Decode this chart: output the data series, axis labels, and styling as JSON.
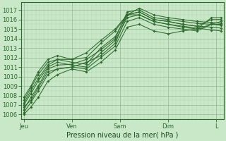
{
  "bg_color": "#c8e8c8",
  "grid_color_minor": "#b0d4b0",
  "grid_color_major": "#90b890",
  "line_color": "#2d6a2d",
  "marker_color": "#2d6a2d",
  "xlabel": "Pression niveau de la mer( hPa )",
  "xlabel_color": "#1a4a1a",
  "ylim": [
    1005.5,
    1017.8
  ],
  "yticks": [
    1006,
    1007,
    1008,
    1009,
    1010,
    1011,
    1012,
    1013,
    1014,
    1015,
    1016,
    1017
  ],
  "xtick_labels": [
    "Jeu",
    "Ven",
    "Sam",
    "Dim",
    "L"
  ],
  "xtick_positions": [
    0,
    1,
    2,
    3,
    4
  ],
  "lines": [
    {
      "x": [
        0.0,
        0.15,
        0.3,
        0.5,
        0.7,
        1.0,
        1.3,
        1.6,
        1.9,
        2.15,
        2.4,
        2.7,
        3.0,
        3.3,
        3.6,
        3.9,
        4.1
      ],
      "y": [
        1006.2,
        1007.3,
        1008.5,
        1010.2,
        1010.8,
        1011.0,
        1011.5,
        1012.2,
        1013.5,
        1016.5,
        1016.8,
        1016.0,
        1015.8,
        1015.5,
        1015.3,
        1015.2,
        1015.1
      ]
    },
    {
      "x": [
        0.0,
        0.15,
        0.3,
        0.5,
        0.7,
        1.0,
        1.3,
        1.6,
        1.9,
        2.15,
        2.4,
        2.7,
        3.0,
        3.3,
        3.6,
        3.9,
        4.1
      ],
      "y": [
        1006.5,
        1007.8,
        1009.0,
        1010.8,
        1011.2,
        1011.3,
        1011.8,
        1012.8,
        1014.0,
        1016.8,
        1017.0,
        1016.2,
        1016.0,
        1015.8,
        1015.6,
        1015.5,
        1015.4
      ]
    },
    {
      "x": [
        0.0,
        0.15,
        0.3,
        0.5,
        0.7,
        1.0,
        1.3,
        1.6,
        1.9,
        2.15,
        2.4,
        2.7,
        3.0,
        3.3,
        3.6,
        3.9,
        4.1
      ],
      "y": [
        1007.0,
        1008.2,
        1009.5,
        1011.0,
        1011.5,
        1011.2,
        1011.0,
        1012.5,
        1013.8,
        1016.2,
        1016.5,
        1015.8,
        1015.5,
        1015.3,
        1015.1,
        1014.9,
        1014.8
      ]
    },
    {
      "x": [
        0.0,
        0.15,
        0.3,
        0.5,
        0.7,
        1.0,
        1.3,
        1.6,
        1.9,
        2.15,
        2.4,
        2.7,
        3.0,
        3.3,
        3.6,
        3.9,
        4.1
      ],
      "y": [
        1007.2,
        1008.5,
        1009.8,
        1011.2,
        1011.8,
        1011.5,
        1011.3,
        1013.0,
        1014.2,
        1016.5,
        1017.2,
        1016.5,
        1016.2,
        1016.0,
        1015.8,
        1015.7,
        1015.6
      ]
    },
    {
      "x": [
        0.0,
        0.15,
        0.3,
        0.5,
        0.7,
        1.0,
        1.3,
        1.6,
        1.9,
        2.15,
        2.4,
        2.7,
        3.0,
        3.3,
        3.6,
        3.9,
        4.1
      ],
      "y": [
        1006.8,
        1007.5,
        1008.8,
        1010.5,
        1010.8,
        1011.0,
        1010.8,
        1012.0,
        1013.2,
        1015.8,
        1016.2,
        1015.5,
        1015.2,
        1015.0,
        1014.8,
        1015.5,
        1015.5
      ]
    },
    {
      "x": [
        0.0,
        0.15,
        0.3,
        0.5,
        0.7,
        1.0,
        1.3,
        1.6,
        1.9,
        2.15,
        2.4,
        2.7,
        3.0,
        3.3,
        3.6,
        3.9,
        4.1
      ],
      "y": [
        1007.5,
        1008.8,
        1010.2,
        1011.5,
        1011.8,
        1011.8,
        1012.0,
        1013.5,
        1014.8,
        1016.5,
        1016.8,
        1016.0,
        1015.8,
        1015.5,
        1015.3,
        1016.0,
        1016.0
      ]
    },
    {
      "x": [
        0.0,
        0.15,
        0.3,
        0.5,
        0.7,
        1.0,
        1.3,
        1.6,
        1.9,
        2.15,
        2.4,
        2.7,
        3.0,
        3.3,
        3.6,
        3.9,
        4.1
      ],
      "y": [
        1006.0,
        1006.8,
        1007.8,
        1009.5,
        1010.2,
        1010.8,
        1010.5,
        1011.5,
        1012.8,
        1015.2,
        1015.5,
        1014.8,
        1014.5,
        1014.8,
        1015.0,
        1015.5,
        1015.8
      ]
    },
    {
      "x": [
        0.0,
        0.15,
        0.3,
        0.5,
        0.7,
        1.0,
        1.3,
        1.6,
        1.9,
        2.15,
        2.4,
        2.7,
        3.0,
        3.3,
        3.6,
        3.9,
        4.1
      ],
      "y": [
        1007.8,
        1009.0,
        1010.5,
        1011.8,
        1012.2,
        1011.8,
        1012.5,
        1013.8,
        1015.0,
        1016.5,
        1016.5,
        1015.8,
        1015.5,
        1015.2,
        1015.0,
        1016.2,
        1016.2
      ]
    }
  ]
}
